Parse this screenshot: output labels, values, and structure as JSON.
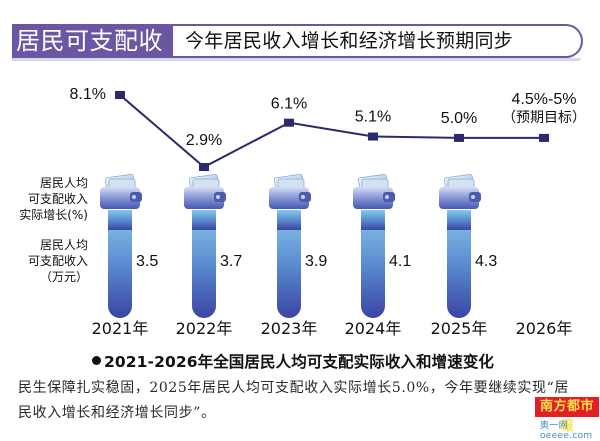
{
  "header": {
    "tag": "居民可支配收入",
    "headline": "今年居民收入增长和经济增长预期同步"
  },
  "chart_data": {
    "type": "bar+line",
    "categories": [
      "2021年",
      "2022年",
      "2023年",
      "2024年",
      "2025年",
      "2026年"
    ],
    "series": [
      {
        "name": "居民人均可支配收入实际增长(%)",
        "type": "line",
        "values": [
          8.1,
          2.9,
          6.1,
          5.1,
          5.0,
          5.0
        ],
        "labels": [
          "8.1%",
          "2.9%",
          "6.1%",
          "5.1%",
          "5.0%",
          "4.5%-5%"
        ],
        "note_last": "（预期目标）"
      },
      {
        "name": "居民人均可支配收入(万元)",
        "type": "bar",
        "values": [
          3.5,
          3.7,
          3.9,
          4.1,
          4.3,
          null
        ],
        "labels": [
          "3.5",
          "3.7",
          "3.9",
          "4.1",
          "4.3",
          ""
        ]
      }
    ],
    "legend_left": {
      "line_label": [
        "居民人均",
        "可支配收入",
        "实际增长(%)"
      ],
      "bar_label": [
        "居民人均",
        "可支配收入",
        "（万元）"
      ]
    },
    "title": "2021-2026年全国居民人均可支配实际收入和增速变化",
    "colors": {
      "line": "#2c2a6e",
      "marker": "#2c2a6e",
      "bar_top": "#7fc3e8",
      "bar_bottom": "#3a4aa8",
      "wallet": "#6d7ec7"
    }
  },
  "caption": "2021-2026年全国居民人均可支配实际收入和增速变化",
  "body_text": "民生保障扎实稳固，2025年居民人均可支配收入实际增长5.0%，今年要继续实现“居民收入增长和经济增长同步”。",
  "logo": {
    "name": "南方都市報",
    "sub": "奥一网oeeee.com"
  }
}
